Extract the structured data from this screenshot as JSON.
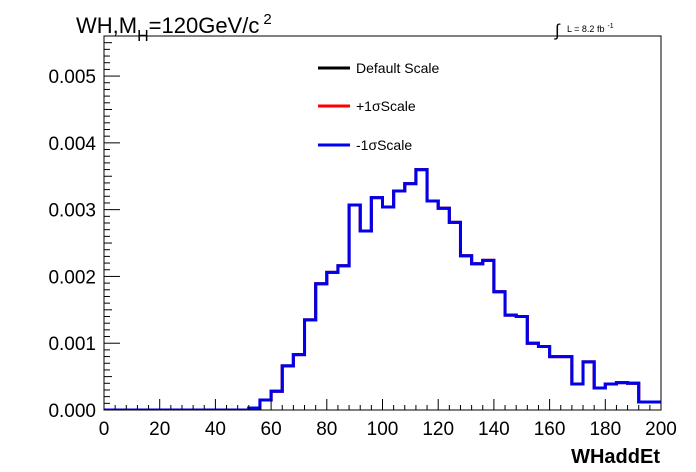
{
  "chart_data": {
    "type": "line",
    "title_main": "WH,M",
    "title_sub": "H",
    "title_rest": "=120GeV/c",
    "title_sup": "2",
    "lumi_integral": "∫",
    "lumi_text": "L = 8.2 fb",
    "lumi_sup": "-1",
    "xlabel": "WHaddEt",
    "ylabel": "",
    "xlim": [
      0,
      200
    ],
    "ylim": [
      0,
      0.0056
    ],
    "x_ticks": [
      0,
      20,
      40,
      60,
      80,
      100,
      120,
      140,
      160,
      180,
      200
    ],
    "x_tick_labels": [
      "0",
      "20",
      "40",
      "60",
      "80",
      "100",
      "120",
      "140",
      "160",
      "180",
      "200"
    ],
    "y_ticks": [
      0,
      0.001,
      0.002,
      0.003,
      0.004,
      0.005
    ],
    "y_tick_labels": [
      "0.000",
      "0.001",
      "0.002",
      "0.003",
      "0.004",
      "0.005"
    ],
    "legend_position": "top-center",
    "bin_edges": [
      0,
      4,
      8,
      12,
      16,
      20,
      24,
      28,
      32,
      36,
      40,
      44,
      48,
      52,
      56,
      60,
      64,
      68,
      72,
      76,
      80,
      84,
      88,
      92,
      96,
      100,
      104,
      108,
      112,
      116,
      120,
      124,
      128,
      132,
      136,
      140,
      144,
      148,
      152,
      156,
      160,
      164,
      168,
      172,
      176,
      180,
      184,
      188,
      192,
      196,
      200
    ],
    "series": [
      {
        "name": "Default Scale",
        "color": "#000000",
        "values": [
          0,
          0,
          0,
          0,
          0,
          0,
          0,
          0,
          0,
          0,
          0,
          0,
          0,
          3e-05,
          0.00015,
          0.00028,
          0.00066,
          0.00083,
          0.00135,
          0.00189,
          0.00206,
          0.00216,
          0.00307,
          0.00268,
          0.00318,
          0.00304,
          0.00328,
          0.00339,
          0.0036,
          0.00313,
          0.00302,
          0.00281,
          0.00231,
          0.00219,
          0.00224,
          0.00177,
          0.00142,
          0.0014,
          0.001,
          0.00095,
          0.0008,
          0.0008,
          0.00039,
          0.00072,
          0.00033,
          0.00039,
          0.00041,
          0.0004,
          0.00012,
          0.00012
        ]
      },
      {
        "name": "+1σScale",
        "color": "#ff0000",
        "values": [
          0,
          0,
          0,
          0,
          0,
          0,
          0,
          0,
          0,
          0,
          0,
          0,
          0,
          3e-05,
          0.00015,
          0.00028,
          0.00066,
          0.00083,
          0.00135,
          0.00189,
          0.00206,
          0.00216,
          0.00307,
          0.00268,
          0.00318,
          0.00304,
          0.00328,
          0.00339,
          0.0036,
          0.00313,
          0.00302,
          0.00281,
          0.00231,
          0.00219,
          0.00224,
          0.00177,
          0.00142,
          0.0014,
          0.001,
          0.00095,
          0.0008,
          0.0008,
          0.00039,
          0.00072,
          0.00033,
          0.00039,
          0.00041,
          0.0004,
          0.00012,
          0.00012
        ]
      },
      {
        "name": "-1σScale",
        "color": "#0000ee",
        "values": [
          0,
          0,
          0,
          0,
          0,
          0,
          0,
          0,
          0,
          0,
          0,
          0,
          0,
          3e-05,
          0.00015,
          0.00028,
          0.00066,
          0.00083,
          0.00135,
          0.00189,
          0.00206,
          0.00216,
          0.00307,
          0.00268,
          0.00318,
          0.00304,
          0.00328,
          0.00339,
          0.0036,
          0.00313,
          0.00302,
          0.00281,
          0.00231,
          0.00219,
          0.00224,
          0.00177,
          0.00142,
          0.0014,
          0.001,
          0.00095,
          0.0008,
          0.0008,
          0.00039,
          0.00072,
          0.00033,
          0.00039,
          0.00041,
          0.0004,
          0.00012,
          0.00012
        ]
      }
    ]
  }
}
